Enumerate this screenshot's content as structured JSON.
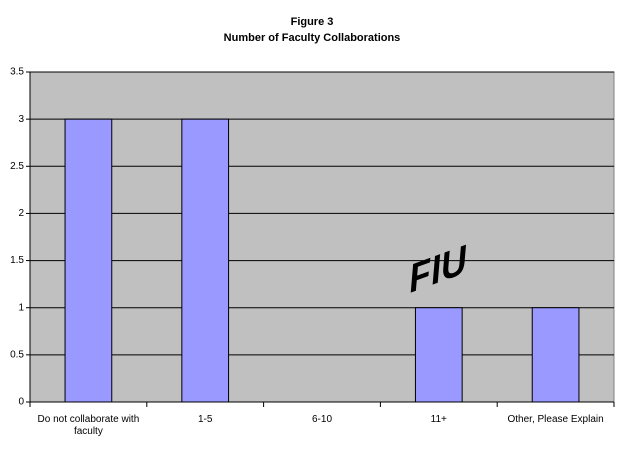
{
  "chart_data": {
    "type": "bar",
    "title": "Figure 3",
    "subtitle": "Number of Faculty Collaborations",
    "categories": [
      "Do not collaborate with faculty",
      "1-5",
      "6-10",
      "11+",
      "Other, Please Explain"
    ],
    "values": [
      3,
      3,
      0,
      1,
      1
    ],
    "color": "#9999ff",
    "ylim": [
      0,
      3.5
    ],
    "yticks": [
      0,
      0.5,
      1,
      1.5,
      2,
      2.5,
      3,
      3.5
    ],
    "grid": true,
    "annotation": "FIU"
  }
}
